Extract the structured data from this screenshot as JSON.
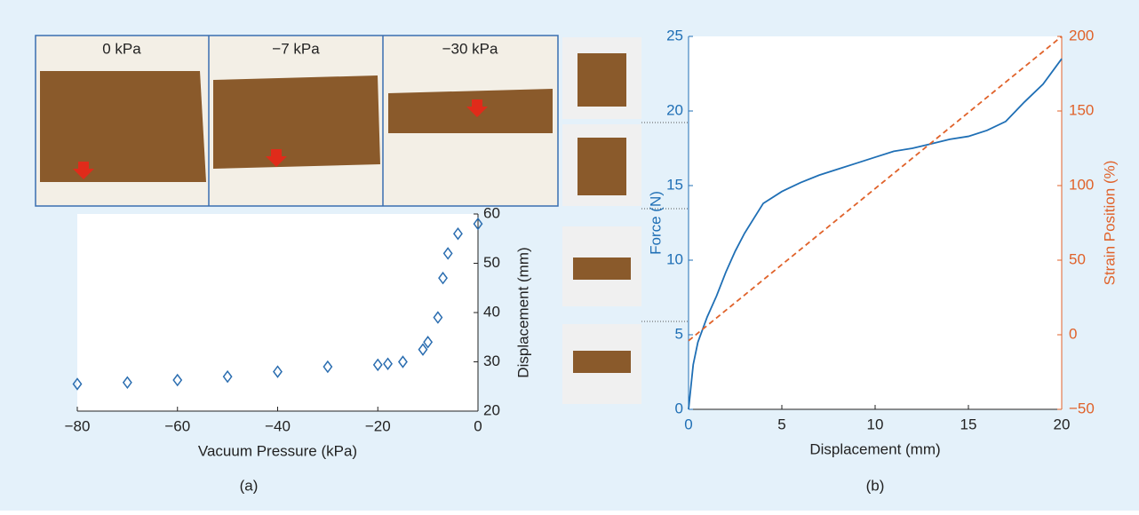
{
  "chart_data": [
    {
      "type": "scatter",
      "caption": "(a)",
      "photo_labels": [
        "0 kPa",
        "−7 kPa",
        "−30 kPa"
      ],
      "x_label": "Vacuum Pressure (kPa)",
      "y_label": "Displacement (mm)",
      "x": [
        -80,
        -70,
        -60,
        -50,
        -40,
        -30,
        -20,
        -18,
        -15,
        -11,
        -10,
        -8,
        -7,
        -6,
        -4,
        0
      ],
      "values": [
        25.5,
        25.8,
        26.3,
        27,
        28,
        29,
        29.4,
        29.6,
        30,
        32.5,
        34,
        39,
        47,
        52,
        56,
        58
      ],
      "color": "#2a6db0",
      "xlim": [
        -80,
        0
      ],
      "xticks": [
        {
          "value": -80,
          "label": "−80"
        },
        {
          "value": -60,
          "label": "−60"
        },
        {
          "value": -40,
          "label": "−40"
        },
        {
          "value": -20,
          "label": "−20"
        },
        0
      ],
      "ylim": [
        20,
        60
      ],
      "yticks": [
        20,
        30,
        40,
        50,
        60
      ]
    },
    {
      "type": "line",
      "caption": "(b)",
      "x_label": "Displacement (mm)",
      "y_label": "Force (N)",
      "y2_label": "Strain Position (%)",
      "xlim": [
        0,
        20
      ],
      "xticks": [
        0,
        5,
        10,
        15,
        20
      ],
      "ylim": [
        0,
        25
      ],
      "yticks": [
        0,
        5,
        10,
        15,
        20,
        25
      ],
      "y2lim": [
        -50,
        200
      ],
      "y2ticks": [
        {
          "value": -50,
          "label": "−50"
        },
        0,
        50,
        100,
        150,
        200
      ],
      "series": [
        {
          "color": "#1f6fb5",
          "linestyle": "solid",
          "x": [
            0,
            0.25,
            0.5,
            1,
            1.5,
            2,
            2.5,
            3,
            3.5,
            4,
            5,
            6,
            7,
            8,
            9,
            10,
            11,
            12,
            13,
            14,
            15,
            16,
            17,
            18,
            19,
            20
          ],
          "values": [
            0,
            3,
            4.5,
            6.2,
            7.6,
            9.2,
            10.6,
            11.8,
            12.8,
            13.8,
            14.6,
            15.2,
            15.7,
            16.1,
            16.5,
            16.9,
            17.3,
            17.5,
            17.8,
            18.1,
            18.3,
            18.7,
            19.3,
            20.6,
            21.8,
            23.5
          ]
        },
        {
          "color": "#e0622a",
          "linestyle": "dashed",
          "axis": "y2",
          "x": [
            0,
            20
          ],
          "values": [
            -4,
            200
          ]
        }
      ]
    }
  ]
}
